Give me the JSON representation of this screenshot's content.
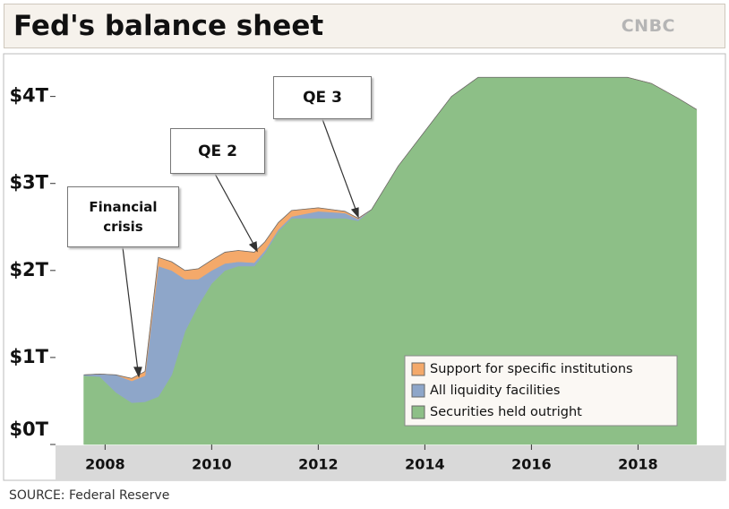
{
  "chart_data": {
    "type": "stacked-area",
    "title": "Fed's balance sheet",
    "logo": "CNBC",
    "source": "SOURCE: Federal Reserve",
    "x": [
      2007.6,
      2007.9,
      2008.2,
      2008.5,
      2008.75,
      2009.0,
      2009.25,
      2009.5,
      2009.75,
      2010.0,
      2010.25,
      2010.5,
      2010.8,
      2011.0,
      2011.25,
      2011.5,
      2012.0,
      2012.5,
      2012.75,
      2013.0,
      2013.5,
      2014.0,
      2014.5,
      2015.0,
      2016.0,
      2017.0,
      2017.8,
      2018.25,
      2018.75,
      2019.1
    ],
    "series": [
      {
        "name": "Securities held outright",
        "color": "#8dbf87",
        "values": [
          0.79,
          0.78,
          0.6,
          0.48,
          0.49,
          0.55,
          0.8,
          1.3,
          1.6,
          1.85,
          2.0,
          2.05,
          2.05,
          2.2,
          2.45,
          2.6,
          2.6,
          2.6,
          2.57,
          2.7,
          3.2,
          3.6,
          4.0,
          4.22,
          4.22,
          4.22,
          4.22,
          4.15,
          3.98,
          3.85
        ]
      },
      {
        "name": "All liquidity facilities",
        "color": "#8ea6c9",
        "values": [
          0.01,
          0.03,
          0.2,
          0.25,
          0.3,
          1.5,
          1.2,
          0.6,
          0.3,
          0.15,
          0.08,
          0.05,
          0.04,
          0.03,
          0.02,
          0.02,
          0.08,
          0.06,
          0.02,
          0,
          0,
          0,
          0,
          0,
          0,
          0,
          0,
          0,
          0,
          0
        ]
      },
      {
        "name": "Support for specific institutions",
        "color": "#f4a96a",
        "values": [
          0,
          0,
          0,
          0.03,
          0.05,
          0.1,
          0.1,
          0.1,
          0.12,
          0.12,
          0.13,
          0.13,
          0.12,
          0.1,
          0.08,
          0.07,
          0.04,
          0.02,
          0.01,
          0,
          0,
          0,
          0,
          0,
          0,
          0,
          0,
          0,
          0,
          0
        ]
      }
    ],
    "xlim": [
      2007.07,
      2019.64
    ],
    "xticks": [
      2008,
      2010,
      2012,
      2014,
      2016,
      2018
    ],
    "ylim": [
      0,
      4.47
    ],
    "yticks": [
      {
        "value": 0,
        "label": "$0T"
      },
      {
        "value": 1,
        "label": "$1T"
      },
      {
        "value": 2,
        "label": "$2T"
      },
      {
        "value": 3,
        "label": "$3T"
      },
      {
        "value": 4,
        "label": "$4T"
      }
    ],
    "legend": "lower right",
    "annotations": [
      {
        "text": "Financial crisis"
      },
      {
        "text": "QE 2"
      },
      {
        "text": "QE 3"
      }
    ]
  }
}
